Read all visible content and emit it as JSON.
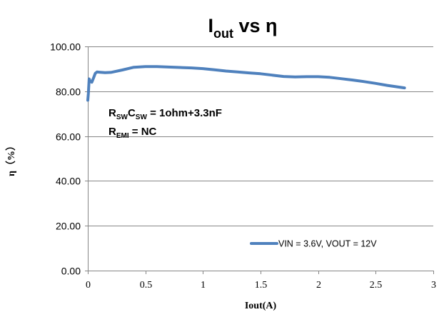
{
  "chart_data": {
    "type": "line",
    "title": {
      "main": "I",
      "sub": "out",
      "rest": " vs η"
    },
    "xlabel": "Iout(A)",
    "ylabel": "η（%）",
    "xlim": [
      0,
      3
    ],
    "ylim": [
      0,
      100
    ],
    "xticks": [
      "0",
      "0.5",
      "1",
      "1.5",
      "2",
      "2.5",
      "3"
    ],
    "yticks": [
      "0.00",
      "20.00",
      "40.00",
      "60.00",
      "80.00",
      "100.00"
    ],
    "grid": {
      "horizontal": true,
      "vertical": false
    },
    "legend_position": "bottom-right",
    "annotations": [
      {
        "main1": "R",
        "sub1": "SW",
        "main2": "C",
        "sub2": "SW",
        "rest": " = 1ohm+3.3nF"
      },
      {
        "main1": "R",
        "sub1": "EMI",
        "rest": " = NC"
      }
    ],
    "series": [
      {
        "name": "VIN = 3.6V, VOUT = 12V",
        "color": "#4f81bd",
        "x": [
          0.0,
          0.005,
          0.012,
          0.02,
          0.035,
          0.05,
          0.065,
          0.08,
          0.1,
          0.15,
          0.2,
          0.3,
          0.4,
          0.5,
          0.6,
          0.7,
          0.8,
          0.9,
          1.0,
          1.1,
          1.2,
          1.3,
          1.4,
          1.5,
          1.6,
          1.7,
          1.8,
          1.9,
          2.0,
          2.1,
          2.2,
          2.3,
          2.4,
          2.5,
          2.6,
          2.75
        ],
        "y": [
          76.0,
          79.0,
          85.5,
          84.5,
          84.0,
          86.0,
          88.0,
          88.6,
          88.5,
          88.3,
          88.4,
          89.5,
          90.7,
          91.0,
          91.0,
          90.8,
          90.6,
          90.4,
          90.1,
          89.6,
          89.0,
          88.6,
          88.2,
          87.8,
          87.2,
          86.6,
          86.4,
          86.5,
          86.5,
          86.2,
          85.6,
          85.0,
          84.3,
          83.5,
          82.6,
          81.5
        ]
      }
    ]
  }
}
